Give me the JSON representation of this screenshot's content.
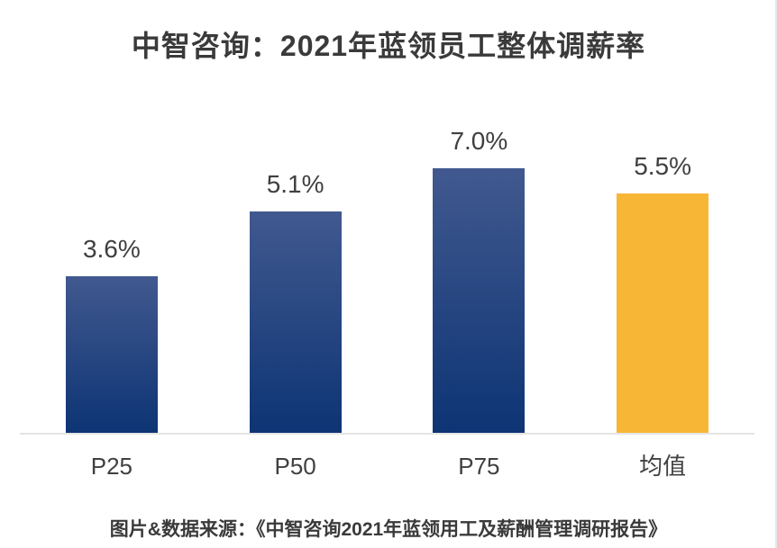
{
  "title": "中智咨询：2021年蓝领员工整体调薪率",
  "source_caption": "图片&数据来源：《中智咨询2021年蓝领用工及薪酬管理调研报告》",
  "chart_data": {
    "type": "bar",
    "title": "中智咨询：2021年蓝领员工整体调薪率",
    "categories": [
      "P25",
      "P50",
      "P75",
      "均值"
    ],
    "values": [
      3.6,
      5.1,
      7.0,
      5.5
    ],
    "value_labels": [
      "3.6%",
      "5.1%",
      "7.0%",
      "5.5%"
    ],
    "unit": "%",
    "xlabel": "",
    "ylabel": "",
    "ylim": [
      0,
      7.0
    ],
    "grid": false,
    "legend": false,
    "data_labels_position": "above-bar",
    "colors": {
      "bar_blue_top": "#41598F",
      "bar_blue_bottom": "#0D3474",
      "bar_highlight": "#F7B636",
      "highlight_index": 3,
      "axis_line": "#E4E4E4",
      "text": "#404040"
    }
  }
}
